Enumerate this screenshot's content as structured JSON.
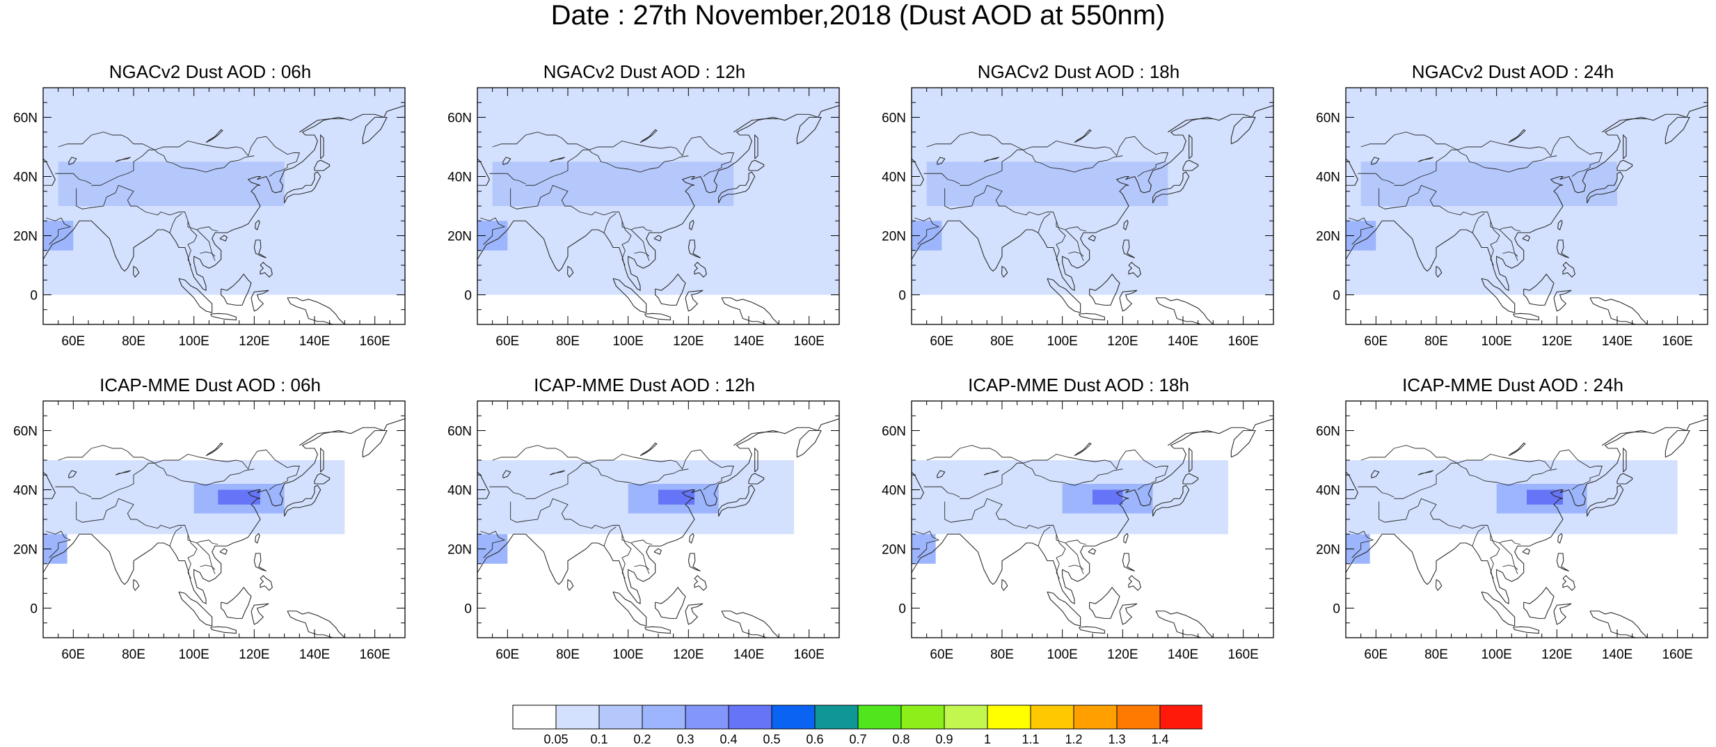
{
  "title": "Date : 27th November,2018 (Dust AOD at 550nm)",
  "map": {
    "x_ticks": [
      "60E",
      "80E",
      "100E",
      "120E",
      "140E",
      "160E"
    ],
    "x_tick_values": [
      60,
      80,
      100,
      120,
      140,
      160
    ],
    "y_ticks": [
      "60N",
      "40N",
      "20N",
      "0"
    ],
    "y_tick_values": [
      60,
      40,
      20,
      0
    ],
    "lon_range": [
      50,
      170
    ],
    "lat_range": [
      -10,
      70
    ],
    "coastline_color": "#2a2a2a"
  },
  "panels": [
    {
      "title": "NGACv2 Dust AOD : 06h",
      "model": "NGACv2",
      "lead": "06h"
    },
    {
      "title": "NGACv2 Dust AOD : 12h",
      "model": "NGACv2",
      "lead": "12h"
    },
    {
      "title": "NGACv2 Dust AOD : 18h",
      "model": "NGACv2",
      "lead": "18h"
    },
    {
      "title": "NGACv2 Dust AOD : 24h",
      "model": "NGACv2",
      "lead": "24h"
    },
    {
      "title": "ICAP-MME Dust AOD : 06h",
      "model": "ICAP-MME",
      "lead": "06h"
    },
    {
      "title": "ICAP-MME Dust AOD : 12h",
      "model": "ICAP-MME",
      "lead": "12h"
    },
    {
      "title": "ICAP-MME Dust AOD : 18h",
      "model": "ICAP-MME",
      "lead": "18h"
    },
    {
      "title": "ICAP-MME Dust AOD : 24h",
      "model": "ICAP-MME",
      "lead": "24h"
    }
  ],
  "colorbar": {
    "labels": [
      "0.05",
      "0.1",
      "0.2",
      "0.3",
      "0.4",
      "0.5",
      "0.6",
      "0.7",
      "0.8",
      "0.9",
      "1",
      "1.1",
      "1.2",
      "1.3",
      "1.4"
    ],
    "colors": [
      "#ffffff",
      "#d4e1fe",
      "#b5c8fc",
      "#9cb5fc",
      "#8396fb",
      "#6674f7",
      "#0a63f3",
      "#0f9696",
      "#4fe61d",
      "#8cef1a",
      "#c1f74f",
      "#ffff00",
      "#ffc800",
      "#ffa000",
      "#ff7a00",
      "#ff1a0a"
    ]
  },
  "chart_data": {
    "type": "heatmap",
    "variable": "Dust AOD at 550nm",
    "date": "27th November,2018",
    "levels": [
      0.05,
      0.1,
      0.2,
      0.3,
      0.4,
      0.5,
      0.6,
      0.7,
      0.8,
      0.9,
      1,
      1.1,
      1.2,
      1.3,
      1.4
    ],
    "lon_range": [
      50,
      170
    ],
    "lat_range": [
      -10,
      70
    ],
    "panels": [
      {
        "model": "NGACv2",
        "lead": "06h",
        "regions": [
          {
            "name": "broad_belt",
            "lon": [
              50,
              170
            ],
            "lat": [
              0,
              70
            ],
            "aod": 0.07
          },
          {
            "name": "central_asia",
            "lon": [
              55,
              130
            ],
            "lat": [
              30,
              45
            ],
            "aod": 0.15
          },
          {
            "name": "arabian_sea",
            "lon": [
              50,
              60
            ],
            "lat": [
              15,
              25
            ],
            "aod": 0.25
          }
        ]
      },
      {
        "model": "NGACv2",
        "lead": "12h",
        "regions": [
          {
            "name": "broad_belt",
            "lon": [
              50,
              170
            ],
            "lat": [
              0,
              70
            ],
            "aod": 0.07
          },
          {
            "name": "central_asia",
            "lon": [
              55,
              135
            ],
            "lat": [
              30,
              45
            ],
            "aod": 0.15
          },
          {
            "name": "arabian_sea",
            "lon": [
              50,
              60
            ],
            "lat": [
              15,
              25
            ],
            "aod": 0.25
          }
        ]
      },
      {
        "model": "NGACv2",
        "lead": "18h",
        "regions": [
          {
            "name": "broad_belt",
            "lon": [
              50,
              170
            ],
            "lat": [
              0,
              70
            ],
            "aod": 0.07
          },
          {
            "name": "central_asia",
            "lon": [
              55,
              135
            ],
            "lat": [
              30,
              45
            ],
            "aod": 0.15
          },
          {
            "name": "arabian_sea",
            "lon": [
              50,
              60
            ],
            "lat": [
              15,
              25
            ],
            "aod": 0.25
          }
        ]
      },
      {
        "model": "NGACv2",
        "lead": "24h",
        "regions": [
          {
            "name": "broad_belt",
            "lon": [
              50,
              170
            ],
            "lat": [
              0,
              70
            ],
            "aod": 0.07
          },
          {
            "name": "central_asia",
            "lon": [
              55,
              140
            ],
            "lat": [
              30,
              45
            ],
            "aod": 0.15
          },
          {
            "name": "arabian_sea",
            "lon": [
              50,
              60
            ],
            "lat": [
              15,
              25
            ],
            "aod": 0.25
          }
        ]
      },
      {
        "model": "ICAP-MME",
        "lead": "06h",
        "regions": [
          {
            "name": "central_belt",
            "lon": [
              50,
              150
            ],
            "lat": [
              25,
              50
            ],
            "aod": 0.07
          },
          {
            "name": "north_china",
            "lon": [
              100,
              130
            ],
            "lat": [
              32,
              42
            ],
            "aod": 0.2
          },
          {
            "name": "core",
            "lon": [
              108,
              122
            ],
            "lat": [
              35,
              40
            ],
            "aod": 0.45
          },
          {
            "name": "arabian_sea",
            "lon": [
              50,
              58
            ],
            "lat": [
              15,
              25
            ],
            "aod": 0.25
          }
        ]
      },
      {
        "model": "ICAP-MME",
        "lead": "12h",
        "regions": [
          {
            "name": "central_belt",
            "lon": [
              50,
              155
            ],
            "lat": [
              25,
              50
            ],
            "aod": 0.07
          },
          {
            "name": "north_china",
            "lon": [
              100,
              130
            ],
            "lat": [
              32,
              42
            ],
            "aod": 0.2
          },
          {
            "name": "core",
            "lon": [
              110,
              122
            ],
            "lat": [
              35,
              40
            ],
            "aod": 0.45
          },
          {
            "name": "arabian_sea",
            "lon": [
              50,
              60
            ],
            "lat": [
              15,
              25
            ],
            "aod": 0.25
          }
        ]
      },
      {
        "model": "ICAP-MME",
        "lead": "18h",
        "regions": [
          {
            "name": "central_belt",
            "lon": [
              50,
              155
            ],
            "lat": [
              25,
              50
            ],
            "aod": 0.07
          },
          {
            "name": "north_china",
            "lon": [
              100,
              130
            ],
            "lat": [
              32,
              42
            ],
            "aod": 0.2
          },
          {
            "name": "core",
            "lon": [
              110,
              120
            ],
            "lat": [
              35,
              40
            ],
            "aod": 0.45
          },
          {
            "name": "arabian_sea",
            "lon": [
              50,
              58
            ],
            "lat": [
              15,
              25
            ],
            "aod": 0.25
          }
        ]
      },
      {
        "model": "ICAP-MME",
        "lead": "24h",
        "regions": [
          {
            "name": "central_belt",
            "lon": [
              50,
              160
            ],
            "lat": [
              25,
              50
            ],
            "aod": 0.07
          },
          {
            "name": "north_china",
            "lon": [
              100,
              130
            ],
            "lat": [
              32,
              42
            ],
            "aod": 0.2
          },
          {
            "name": "core",
            "lon": [
              110,
              122
            ],
            "lat": [
              35,
              40
            ],
            "aod": 0.45
          },
          {
            "name": "arabian_sea",
            "lon": [
              50,
              58
            ],
            "lat": [
              15,
              25
            ],
            "aod": 0.25
          }
        ]
      }
    ]
  }
}
